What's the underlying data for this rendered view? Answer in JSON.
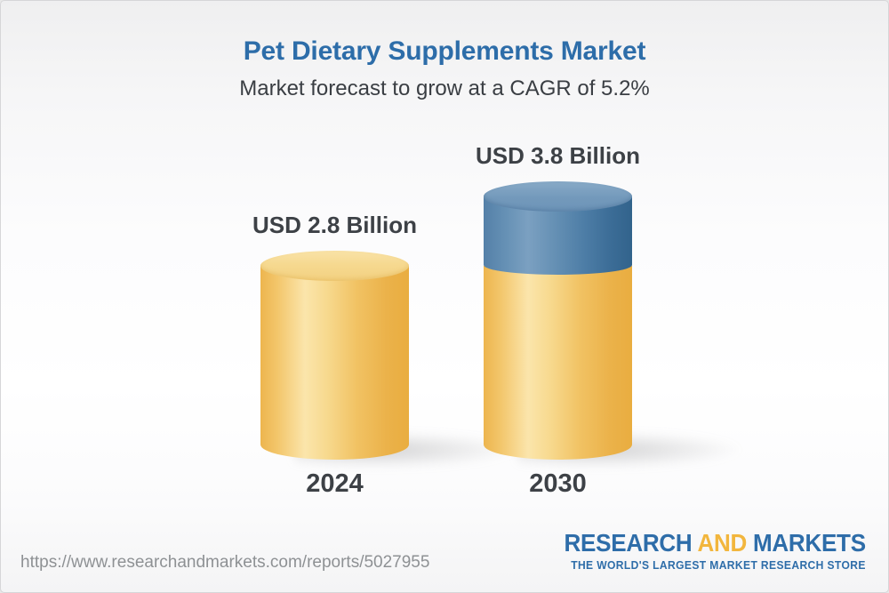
{
  "chart_data": {
    "type": "bar",
    "subtype": "3d-cylinder-column",
    "title": "Pet Dietary Supplements Market",
    "subtitle": "Market forecast to grow at a CAGR of 5.2%",
    "categories": [
      "2024",
      "2030"
    ],
    "values": [
      2.8,
      3.8
    ],
    "value_labels": [
      "USD 2.8 Billion",
      "USD 3.8 Billion"
    ],
    "unit": "USD Billion",
    "cagr_percent": 5.2,
    "ylim": [
      0,
      4
    ],
    "grid": false,
    "legend": "none",
    "series_note": "2030 column is stacked: gold portion equals the 2024 base value, blue top segment is the forecast growth",
    "colors": {
      "base_segment": "#f3c76d",
      "growth_segment": "#4d7da6",
      "title_blue": "#2d6da9",
      "label_dark": "#3d4146"
    }
  },
  "footer": {
    "url": "https://www.researchandmarkets.com/reports/5027955",
    "logo": {
      "word1": "RESEARCH",
      "word2": "AND",
      "word3": "MARKETS",
      "tagline": "THE WORLD'S LARGEST MARKET RESEARCH STORE",
      "blue": "#2e6da9",
      "yellow": "#f2b63d"
    }
  }
}
